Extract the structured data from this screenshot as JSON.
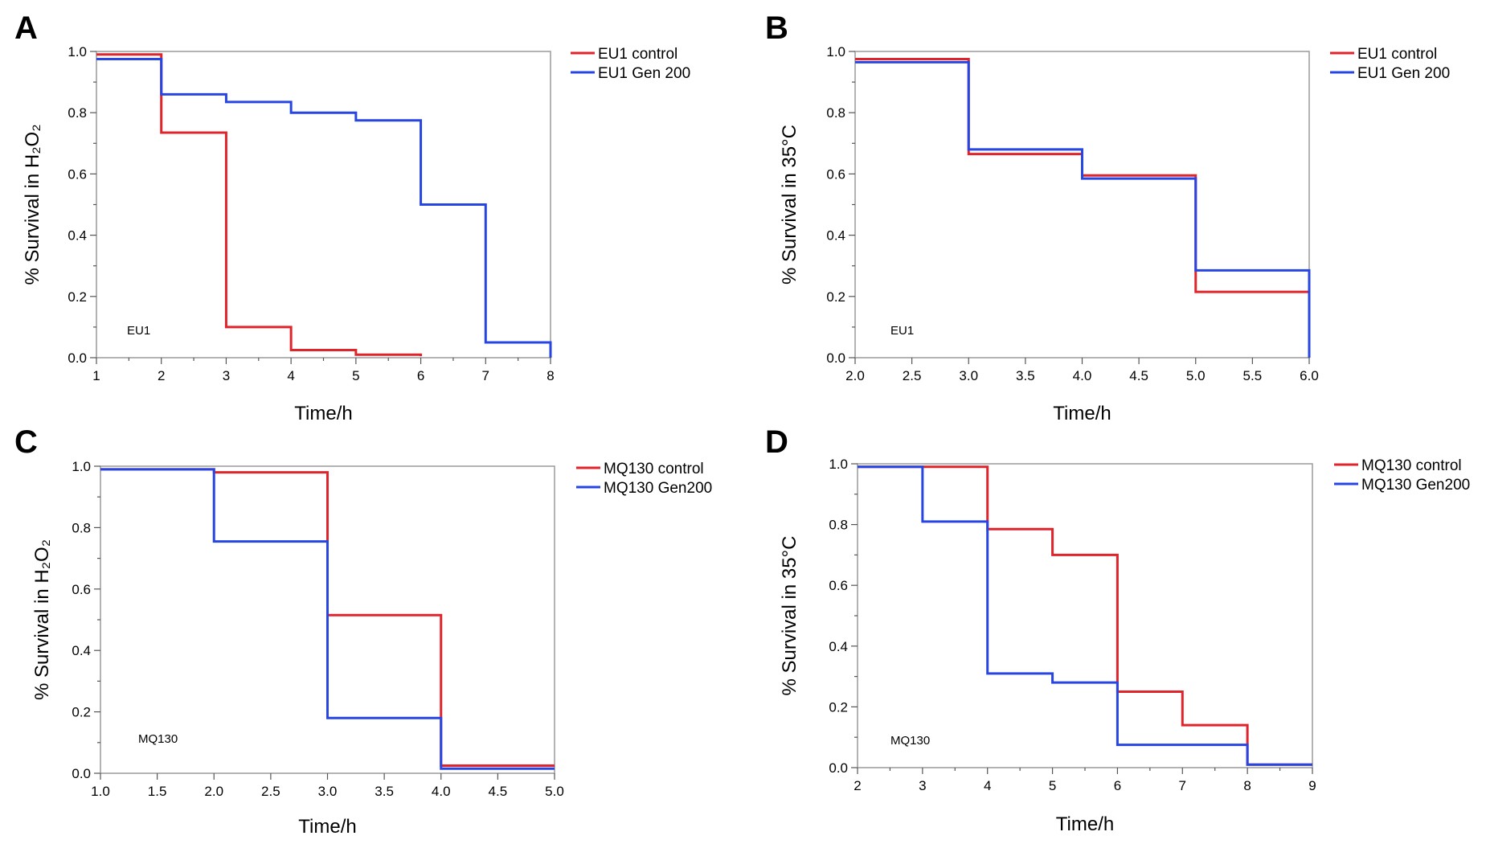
{
  "colors": {
    "control": "#e0242b",
    "gen": "#2745e3"
  },
  "chart_data": [
    {
      "type": "line",
      "step": true,
      "panel_label": "A",
      "xlabel": "Time/h",
      "ylabel": "% Survival in H₂O₂",
      "annotation": "EU1",
      "xlim": [
        1,
        8
      ],
      "ylim": [
        0,
        1
      ],
      "xticks": [
        1,
        2,
        3,
        4,
        5,
        6,
        7,
        8
      ],
      "xtick_labels": [
        "1",
        "2",
        "3",
        "4",
        "5",
        "6",
        "7",
        "8"
      ],
      "yticks": [
        0,
        0.2,
        0.4,
        0.6,
        0.8,
        1.0
      ],
      "ytick_labels": [
        "0.0",
        "0.2",
        "0.4",
        "0.6",
        "0.8",
        "1.0"
      ],
      "minor_x": true,
      "legend_position": "right-top-outside",
      "series": [
        {
          "name": "EU1 control",
          "color_key": "control",
          "x": [
            1,
            2,
            3,
            4,
            5,
            6
          ],
          "y": [
            0.99,
            0.735,
            0.1,
            0.025,
            0.01,
            0.005
          ],
          "x_end": 6
        },
        {
          "name": "EU1 Gen 200",
          "color_key": "gen",
          "x": [
            1,
            2,
            3,
            4,
            5,
            6,
            7
          ],
          "y": [
            0.975,
            0.86,
            0.835,
            0.8,
            0.775,
            0.5,
            0.05
          ],
          "x_end": 8,
          "drop_to_zero": true
        }
      ]
    },
    {
      "type": "line",
      "step": true,
      "panel_label": "B",
      "xlabel": "Time/h",
      "ylabel": "% Survival in 35°C",
      "annotation": "EU1",
      "xlim": [
        2,
        6
      ],
      "ylim": [
        0,
        1
      ],
      "xticks": [
        2,
        2.5,
        3,
        3.5,
        4,
        4.5,
        5,
        5.5,
        6
      ],
      "xtick_labels": [
        "2.0",
        "2.5",
        "3.0",
        "3.5",
        "4.0",
        "4.5",
        "5.0",
        "5.5",
        "6.0"
      ],
      "yticks": [
        0,
        0.2,
        0.4,
        0.6,
        0.8,
        1.0
      ],
      "ytick_labels": [
        "0.0",
        "0.2",
        "0.4",
        "0.6",
        "0.8",
        "1.0"
      ],
      "minor_x": false,
      "legend_position": "right-top-outside",
      "series": [
        {
          "name": "EU1 control",
          "color_key": "control",
          "x": [
            2,
            3,
            4,
            5
          ],
          "y": [
            0.975,
            0.665,
            0.595,
            0.215
          ],
          "x_end": 6
        },
        {
          "name": "EU1 Gen 200",
          "color_key": "gen",
          "x": [
            2,
            3,
            4,
            5
          ],
          "y": [
            0.965,
            0.68,
            0.585,
            0.285
          ],
          "x_end": 6,
          "drop_to_zero": true
        }
      ]
    },
    {
      "type": "line",
      "step": true,
      "panel_label": "C",
      "xlabel": "Time/h",
      "ylabel": "% Survival in H₂O₂",
      "annotation": "MQ130",
      "xlim": [
        1,
        5
      ],
      "ylim": [
        0,
        1
      ],
      "xticks": [
        1,
        1.5,
        2,
        2.5,
        3,
        3.5,
        4,
        4.5,
        5
      ],
      "xtick_labels": [
        "1.0",
        "1.5",
        "2.0",
        "2.5",
        "3.0",
        "3.5",
        "4.0",
        "4.5",
        "5.0"
      ],
      "yticks": [
        0,
        0.2,
        0.4,
        0.6,
        0.8,
        1.0
      ],
      "ytick_labels": [
        "0.0",
        "0.2",
        "0.4",
        "0.6",
        "0.8",
        "1.0"
      ],
      "minor_x": false,
      "legend_position": "right-top-outside",
      "series": [
        {
          "name": "MQ130 control",
          "color_key": "control",
          "x": [
            1,
            2,
            3,
            4
          ],
          "y": [
            0.99,
            0.98,
            0.515,
            0.025
          ],
          "x_end": 5
        },
        {
          "name": "MQ130 Gen200",
          "color_key": "gen",
          "x": [
            1,
            2,
            3,
            4
          ],
          "y": [
            0.99,
            0.755,
            0.18,
            0.015
          ],
          "x_end": 5
        }
      ]
    },
    {
      "type": "line",
      "step": true,
      "panel_label": "D",
      "xlabel": "Time/h",
      "ylabel": "% Survival in 35°C",
      "annotation": "MQ130",
      "xlim": [
        2,
        9
      ],
      "ylim": [
        0,
        1
      ],
      "xticks": [
        2,
        3,
        4,
        5,
        6,
        7,
        8,
        9
      ],
      "xtick_labels": [
        "2",
        "3",
        "4",
        "5",
        "6",
        "7",
        "8",
        "9"
      ],
      "yticks": [
        0,
        0.2,
        0.4,
        0.6,
        0.8,
        1.0
      ],
      "ytick_labels": [
        "0.0",
        "0.2",
        "0.4",
        "0.6",
        "0.8",
        "1.0"
      ],
      "minor_x": true,
      "legend_position": "right-top-outside",
      "series": [
        {
          "name": "MQ130 control",
          "color_key": "control",
          "x": [
            2,
            4,
            5,
            6,
            7,
            8
          ],
          "y": [
            0.99,
            0.785,
            0.7,
            0.25,
            0.14,
            0.01
          ],
          "x_end": 9
        },
        {
          "name": "MQ130 Gen200",
          "color_key": "gen",
          "x": [
            2,
            3,
            4,
            5,
            6,
            8
          ],
          "y": [
            0.99,
            0.81,
            0.31,
            0.28,
            0.075,
            0.01
          ],
          "x_end": 9
        }
      ]
    }
  ]
}
